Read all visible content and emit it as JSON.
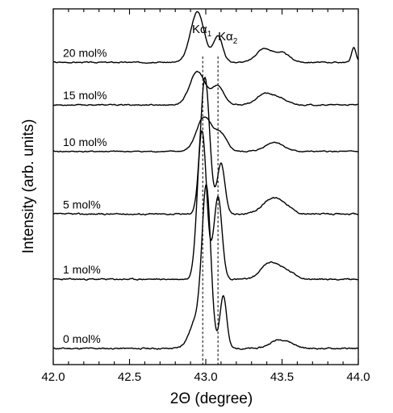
{
  "chart_data": {
    "type": "line",
    "xlabel": "2Θ (degree)",
    "ylabel": "Intensity (arb. units)",
    "xlim": [
      42.0,
      44.0
    ],
    "x_ticks": [
      "42.0",
      "42.5",
      "43.0",
      "43.5",
      "44.0"
    ],
    "x_minor_step": 0.1,
    "y_ticks": "none",
    "grid": false,
    "legend": "none",
    "line_color": "#000000",
    "annotations": [
      {
        "id": "ka1",
        "base": "Kα",
        "sub": "1",
        "x": 42.98,
        "style": "dashed-vertical"
      },
      {
        "id": "ka2",
        "base": "Kα",
        "sub": "2",
        "x": 43.08,
        "style": "dashed-vertical"
      }
    ],
    "series": [
      {
        "name": "0 mol%",
        "baseline": 0.0,
        "noise": 0.05,
        "seed": 11,
        "peaks": [
          [
            43.005,
            11.0,
            0.028
          ],
          [
            43.115,
            4.0,
            0.022
          ],
          [
            42.95,
            2.4,
            0.05
          ],
          [
            43.46,
            0.5,
            0.05
          ],
          [
            43.54,
            0.4,
            0.05
          ]
        ]
      },
      {
        "name": "1 mol%",
        "baseline": 5.2,
        "noise": 0.05,
        "seed": 23,
        "peaks": [
          [
            42.975,
            11.2,
            0.03
          ],
          [
            43.08,
            6.2,
            0.026
          ],
          [
            43.4,
            0.9,
            0.05
          ],
          [
            43.47,
            0.7,
            0.05
          ],
          [
            43.55,
            0.4,
            0.05
          ]
        ]
      },
      {
        "name": "5 mol%",
        "baseline": 10.1,
        "noise": 0.05,
        "seed": 37,
        "peaks": [
          [
            42.995,
            10.3,
            0.03
          ],
          [
            43.1,
            3.8,
            0.025
          ],
          [
            43.43,
            1.1,
            0.06
          ],
          [
            43.52,
            0.5,
            0.05
          ]
        ]
      },
      {
        "name": "10 mol%",
        "baseline": 14.8,
        "noise": 0.04,
        "seed": 41,
        "peaks": [
          [
            42.99,
            2.6,
            0.05
          ],
          [
            43.1,
            1.2,
            0.04
          ],
          [
            43.45,
            0.7,
            0.06
          ]
        ]
      },
      {
        "name": "15 mol%",
        "baseline": 18.3,
        "noise": 0.04,
        "seed": 53,
        "peaks": [
          [
            42.945,
            2.5,
            0.05
          ],
          [
            43.08,
            1.4,
            0.04
          ],
          [
            43.38,
            0.8,
            0.05
          ],
          [
            43.48,
            0.5,
            0.05
          ]
        ]
      },
      {
        "name": "20 mol%",
        "baseline": 21.5,
        "noise": 0.04,
        "seed": 67,
        "peaks": [
          [
            42.945,
            3.8,
            0.045
          ],
          [
            43.08,
            2.0,
            0.03
          ],
          [
            43.38,
            1.0,
            0.05
          ],
          [
            43.5,
            0.7,
            0.05
          ],
          [
            43.97,
            1.1,
            0.015
          ]
        ]
      }
    ]
  }
}
